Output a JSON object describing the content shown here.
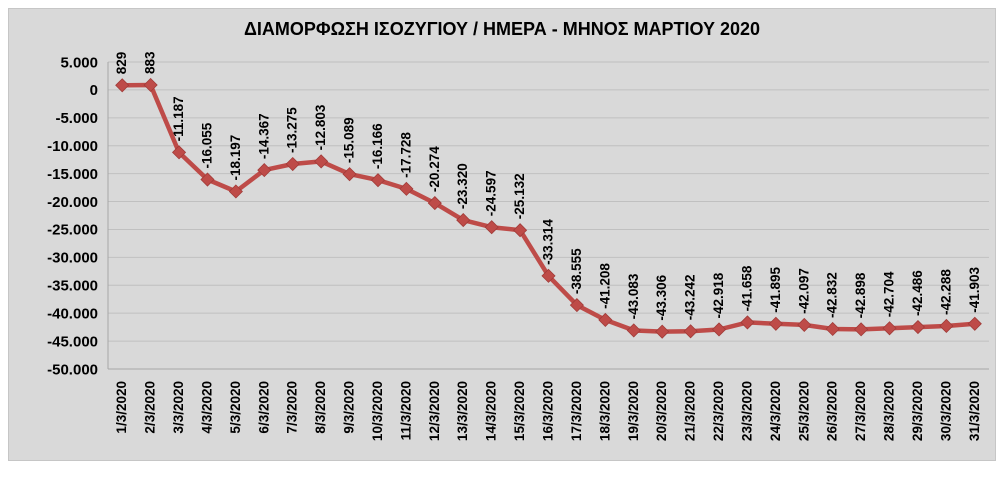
{
  "chart_data": {
    "type": "line",
    "title": "ΔΙΑΜΟΡΦΩΣΗ ΙΣΟΖΥΓΙΟΥ / ΗΜΕΡΑ - ΜΗΝΟΣ ΜΑΡΤΙΟΥ 2020",
    "xlabel": "",
    "ylabel": "",
    "categories": [
      "1/3/2020",
      "2/3/2020",
      "3/3/2020",
      "4/3/2020",
      "5/3/2020",
      "6/3/2020",
      "7/3/2020",
      "8/3/2020",
      "9/3/2020",
      "10/3/2020",
      "11/3/2020",
      "12/3/2020",
      "13/3/2020",
      "14/3/2020",
      "15/3/2020",
      "16/3/2020",
      "17/3/2020",
      "18/3/2020",
      "19/3/2020",
      "20/3/2020",
      "21/3/2020",
      "22/3/2020",
      "23/3/2020",
      "24/3/2020",
      "25/3/2020",
      "26/3/2020",
      "27/3/2020",
      "28/3/2020",
      "29/3/2020",
      "30/3/2020",
      "31/3/2020"
    ],
    "values": [
      829,
      883,
      -11187,
      -16055,
      -18197,
      -14367,
      -13275,
      -12803,
      -15089,
      -16166,
      -17728,
      -20274,
      -23320,
      -24597,
      -25132,
      -33314,
      -38555,
      -41208,
      -43083,
      -43306,
      -43242,
      -42918,
      -41658,
      -41895,
      -42097,
      -42832,
      -42898,
      -42704,
      -42486,
      -42288,
      -41903
    ],
    "point_labels": [
      "829",
      "883",
      "-11.187",
      "-16.055",
      "-18.197",
      "-14.367",
      "-13.275",
      "-12.803",
      "-15.089",
      "-16.166",
      "-17.728",
      "-20.274",
      "-23.320",
      "-24.597",
      "-25.132",
      "-33.314",
      "-38.555",
      "-41.208",
      "-43.083",
      "-43.306",
      "-43.242",
      "-42.918",
      "-41.658",
      "-41.895",
      "-42.097",
      "-42.832",
      "-42.898",
      "-42.704",
      "-42.486",
      "-42.288",
      "-41.903"
    ],
    "y_ticks": [
      5000,
      0,
      -5000,
      -10000,
      -15000,
      -20000,
      -25000,
      -30000,
      -35000,
      -40000,
      -45000,
      -50000
    ],
    "y_tick_labels": [
      "5.000",
      "0",
      "-5.000",
      "-10.000",
      "-15.000",
      "-20.000",
      "-25.000",
      "-30.000",
      "-35.000",
      "-40.000",
      "-45.000",
      "-50.000"
    ],
    "ylim": [
      -50000,
      5000
    ],
    "grid": "horizontal",
    "legend": "none",
    "label_rotation_deg": 90,
    "x_tick_rotation_deg": 90,
    "colors": {
      "series_line": "#be4b48",
      "marker_fill": "#be4b48",
      "marker_edge": "#a03b38",
      "plot_background": "#d9d9d9",
      "gridline": "#c0c0c0",
      "axis_line": "#a6a6a6",
      "text": "#000000"
    }
  }
}
